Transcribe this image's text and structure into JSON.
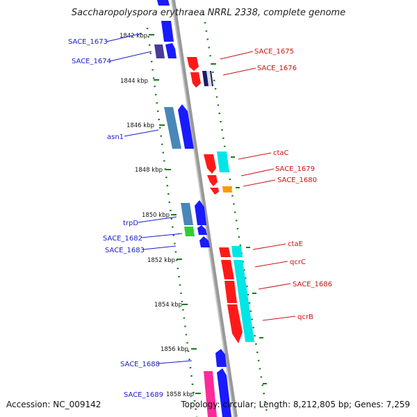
{
  "title": "Saccharopolyspora erythraea NRRL 2338, complete genome",
  "footer": {
    "accession": "Accession: NC_009142",
    "summary": "Topology: circular; Length: 8,212,805 bp; Genes: 7,259"
  },
  "colors": {
    "left_label": "#1a1acc",
    "right_label": "#cc1111",
    "tick": "#1a7a1a",
    "backbone": "#888888"
  },
  "scale_labels": [
    "1842 kbp",
    "1844 kbp",
    "1846 kbp",
    "1848 kbp",
    "1850 kbp",
    "1852 kbp",
    "1854 kbp",
    "1856 kbp",
    "1858 kbp"
  ],
  "genes_left": [
    "SACE_1673",
    "SACE_1674",
    "asn1",
    "trpD",
    "SACE_1682",
    "SACE_1683",
    "SACE_1688",
    "SACE_1689"
  ],
  "genes_right": [
    "SACE_1675",
    "SACE_1676",
    "ctaC",
    "SACE_1679",
    "SACE_1680",
    "ctaE",
    "qcrC",
    "SACE_1686",
    "qcrB"
  ]
}
